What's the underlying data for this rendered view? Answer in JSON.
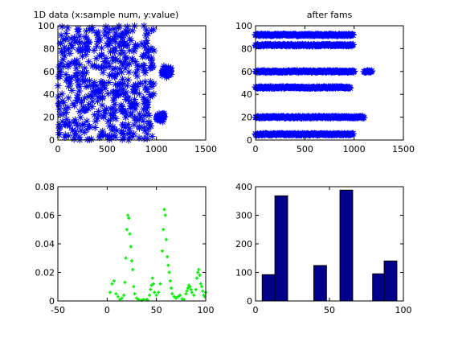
{
  "chart_data": [
    {
      "type": "scatter",
      "title": "1D data (x:sample num, y:value)",
      "xlabel": "",
      "ylabel": "",
      "xlim": [
        0,
        1500
      ],
      "ylim": [
        0,
        100
      ],
      "xticks": [
        0,
        500,
        1000,
        1500
      ],
      "yticks": [
        0,
        20,
        40,
        60,
        80,
        100
      ],
      "grid": false,
      "marker": "*",
      "color": "#0000ff",
      "description_of_data": "About 1000 samples uniformly scattered over x 0-1000, y 0-100, plus two dense clusters",
      "clusters": [
        {
          "x_range": [
            1050,
            1150
          ],
          "y_center": 60,
          "y_spread": 6
        },
        {
          "x_range": [
            1000,
            1080
          ],
          "y_center": 20,
          "y_spread": 5
        }
      ]
    },
    {
      "type": "scatter",
      "title": "after fams",
      "xlabel": "",
      "ylabel": "",
      "xlim": [
        0,
        1500
      ],
      "ylim": [
        0,
        100
      ],
      "xticks": [
        0,
        500,
        1000,
        1500
      ],
      "yticks": [
        0,
        20,
        40,
        60,
        80,
        100
      ],
      "grid": false,
      "marker": "*",
      "color": "#0000ff",
      "series": [
        {
          "y": 92,
          "x_range": [
            0,
            990
          ]
        },
        {
          "y": 83,
          "x_range": [
            0,
            990
          ]
        },
        {
          "y": 60,
          "x_range": [
            0,
            1000
          ]
        },
        {
          "y": 60,
          "x_range": [
            1100,
            1180
          ]
        },
        {
          "y": 46,
          "x_range": [
            0,
            960
          ]
        },
        {
          "y": 20,
          "x_range": [
            0,
            1100
          ]
        },
        {
          "y": 5,
          "x_range": [
            0,
            990
          ]
        }
      ]
    },
    {
      "type": "scatter",
      "title": "",
      "xlabel": "",
      "ylabel": "",
      "xlim": [
        -50,
        100
      ],
      "ylim": [
        0,
        0.08
      ],
      "xticks": [
        -50,
        0,
        50,
        100
      ],
      "yticks": [
        0,
        0.02,
        0.04,
        0.06,
        0.08
      ],
      "ytick_labels": [
        "0",
        "0.02",
        "0.04",
        "0.06",
        "0.08"
      ],
      "grid": false,
      "marker": "+",
      "color": "#00ee00",
      "points": [
        [
          3,
          0.006
        ],
        [
          5,
          0.012
        ],
        [
          7,
          0.014
        ],
        [
          9,
          0.005
        ],
        [
          11,
          0.003
        ],
        [
          13,
          0.001
        ],
        [
          15,
          0.002
        ],
        [
          17,
          0.004
        ],
        [
          18,
          0.013
        ],
        [
          19,
          0.03
        ],
        [
          20,
          0.05
        ],
        [
          21,
          0.06
        ],
        [
          22,
          0.058
        ],
        [
          23,
          0.047
        ],
        [
          24,
          0.038
        ],
        [
          25,
          0.028
        ],
        [
          26,
          0.022
        ],
        [
          27,
          0.01
        ],
        [
          28,
          0.005
        ],
        [
          30,
          0.002
        ],
        [
          32,
          0.001
        ],
        [
          35,
          0.0005
        ],
        [
          37,
          0.001
        ],
        [
          40,
          0.001
        ],
        [
          41,
          0.0008
        ],
        [
          43,
          0.004
        ],
        [
          44,
          0.008
        ],
        [
          45,
          0.011
        ],
        [
          46,
          0.016
        ],
        [
          47,
          0.012
        ],
        [
          48,
          0.006
        ],
        [
          50,
          0.004
        ],
        [
          52,
          0.006
        ],
        [
          54,
          0.012
        ],
        [
          56,
          0.035
        ],
        [
          57,
          0.05
        ],
        [
          58,
          0.064
        ],
        [
          59,
          0.06
        ],
        [
          60,
          0.043
        ],
        [
          61,
          0.031
        ],
        [
          62,
          0.025
        ],
        [
          63,
          0.02
        ],
        [
          64,
          0.014
        ],
        [
          65,
          0.009
        ],
        [
          66,
          0.005
        ],
        [
          68,
          0.003
        ],
        [
          70,
          0.002
        ],
        [
          72,
          0.003
        ],
        [
          74,
          0.004
        ],
        [
          76,
          0.0015
        ],
        [
          78,
          0.001
        ],
        [
          80,
          0.005
        ],
        [
          81,
          0.007
        ],
        [
          82,
          0.009
        ],
        [
          83,
          0.011
        ],
        [
          84,
          0.01
        ],
        [
          85,
          0.008
        ],
        [
          86,
          0.006
        ],
        [
          88,
          0.004
        ],
        [
          90,
          0.008
        ],
        [
          91,
          0.016
        ],
        [
          92,
          0.02
        ],
        [
          93,
          0.022
        ],
        [
          94,
          0.018
        ],
        [
          95,
          0.012
        ],
        [
          96,
          0.01
        ],
        [
          97,
          0.007
        ],
        [
          98,
          0.004
        ],
        [
          99,
          0.003
        ],
        [
          100,
          0.006
        ]
      ]
    },
    {
      "type": "bar",
      "title": "",
      "xlabel": "",
      "ylabel": "",
      "xlim": [
        0,
        100
      ],
      "ylim": [
        0,
        400
      ],
      "xticks": [
        0,
        50,
        100
      ],
      "yticks": [
        0,
        100,
        200,
        300,
        400
      ],
      "grid": false,
      "bar_color": "#00008b",
      "bin_width": 8.6,
      "bin_centers": [
        8.8,
        17.4,
        43.7,
        61.4,
        83.5,
        91.3
      ],
      "values": [
        92,
        368,
        124,
        388,
        95,
        140
      ]
    }
  ]
}
